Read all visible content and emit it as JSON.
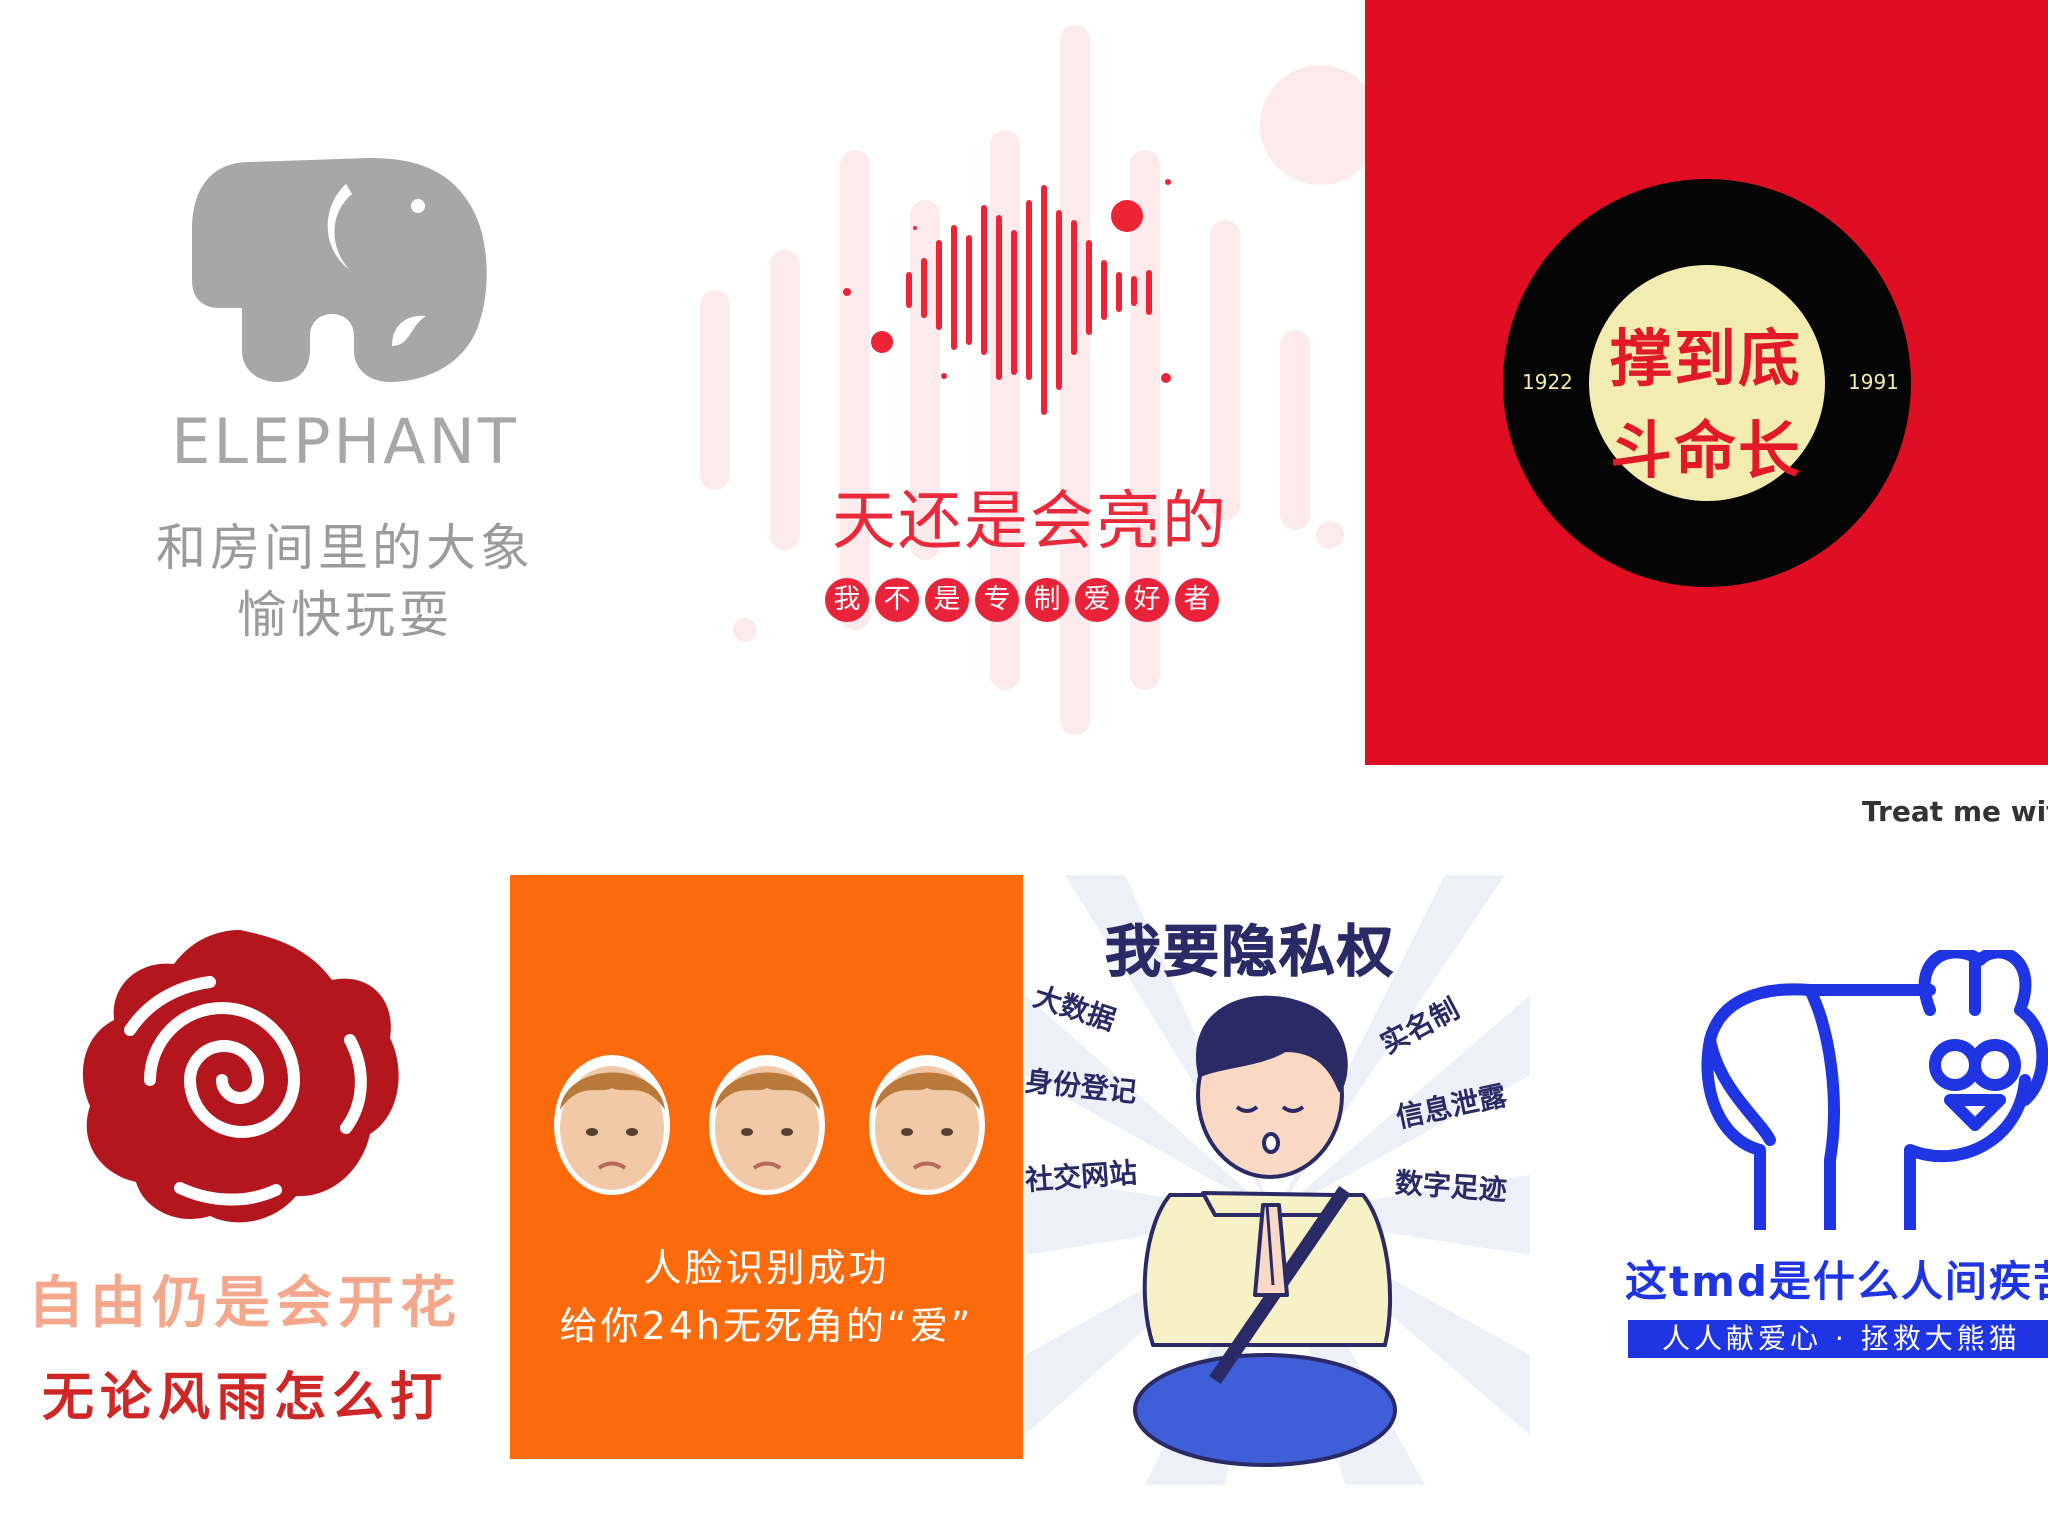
{
  "elephant": {
    "title": "ELEPHANT",
    "subtitle_line1": "和房间里的大象",
    "subtitle_line2": "愉快玩耍",
    "color": "#a7a7a7"
  },
  "soundwave": {
    "title": "天还是会亮的",
    "pills": [
      "我",
      "不",
      "是",
      "专",
      "制",
      "爱",
      "好",
      "者"
    ],
    "accent": "#e8233a"
  },
  "record": {
    "line1": "撑到底",
    "line2": "斗命长",
    "year_left": "1922",
    "year_right": "1991",
    "background": "#e00e22"
  },
  "overflow_text": "Treat me with",
  "rose": {
    "line1": "自由仍是会开花",
    "line2": "无论风雨怎么打",
    "color": "#b3161c"
  },
  "orange": {
    "line1": "人脸识别成功",
    "line2": "给你24h无死角的“爱”",
    "background": "#fb6a0b"
  },
  "privacy": {
    "title": "我要隐私权",
    "tags_left": [
      "大数据",
      "身份登记",
      "社交网站"
    ],
    "tags_right": [
      "实名制",
      "信息泄露",
      "数字足迹"
    ]
  },
  "panda": {
    "title": "这tmd是什么人间疾苦",
    "band": "人人献爱心 · 拯救大熊猫",
    "color": "#1f35e3"
  }
}
